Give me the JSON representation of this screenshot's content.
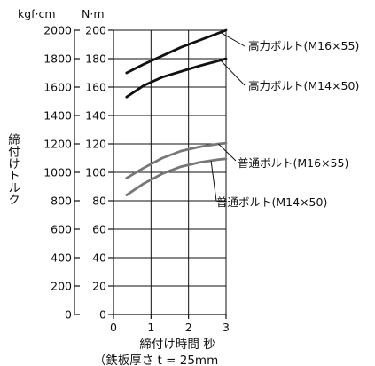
{
  "chart_data": {
    "type": "line",
    "units": {
      "kgf": "kgf·cm",
      "nm": "N·m"
    },
    "xlabel": "締付け時間 秒",
    "note": "（鉄板厚さ t = 25mm",
    "ylabel": "締付けトルク",
    "xlim": [
      0,
      3
    ],
    "ylim_nm": [
      0,
      200
    ],
    "ylim_kgf": [
      0,
      2000
    ],
    "x_ticks": [
      0,
      1,
      2,
      3
    ],
    "y_ticks_nm": [
      0,
      20,
      40,
      60,
      80,
      100,
      120,
      140,
      160,
      180,
      200
    ],
    "y_ticks_kgf": [
      0,
      200,
      400,
      600,
      800,
      1000,
      1200,
      1400,
      1600,
      1800,
      2000
    ],
    "grid": true,
    "series": [
      {
        "name": "高力ボルト(M16×55)",
        "color": "#111111",
        "x": [
          0.35,
          0.8,
          1.3,
          1.8,
          2.3,
          2.8,
          3.0
        ],
        "y": [
          170,
          176,
          182,
          188,
          193,
          198,
          200
        ]
      },
      {
        "name": "高力ボルト(M14×50)",
        "color": "#111111",
        "x": [
          0.35,
          0.8,
          1.3,
          1.8,
          2.3,
          2.8,
          3.0
        ],
        "y": [
          153,
          161,
          167,
          171,
          175,
          178.5,
          180
        ]
      },
      {
        "name": "普通ボルト(M16×55)",
        "color": "#777777",
        "x": [
          0.35,
          0.8,
          1.3,
          1.8,
          2.3,
          2.8,
          3.0
        ],
        "y": [
          96,
          103,
          110,
          115,
          118,
          120,
          120.5
        ]
      },
      {
        "name": "普通ボルト(M14×50)",
        "color": "#777777",
        "x": [
          0.35,
          0.8,
          1.3,
          1.8,
          2.3,
          2.8,
          3.0
        ],
        "y": [
          84,
          92,
          99,
          104,
          107,
          109,
          109.5
        ]
      }
    ]
  }
}
